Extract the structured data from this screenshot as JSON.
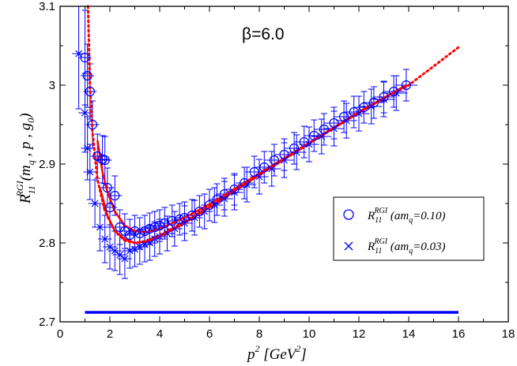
{
  "chart_data": {
    "type": "scatter",
    "annotation": "β=6.0",
    "xlabel": {
      "main": "p",
      "sup": "2",
      "units": " [GeV",
      "units_sup": "2",
      "close": "]"
    },
    "ylabel": {
      "main": "R",
      "sub": "11",
      "sup": "RGI",
      "args": "(m",
      "args_sub": "q",
      "args2": " , p , g",
      "args2_sub": "0",
      "close": ")"
    },
    "xlim": [
      0,
      18
    ],
    "ylim": [
      2.7,
      3.1
    ],
    "xticks": [
      "0",
      "2",
      "4",
      "6",
      "8",
      "10",
      "12",
      "14",
      "16",
      "18"
    ],
    "yticks": [
      "2.7",
      "2.8",
      "2.9",
      "3",
      "3.1"
    ],
    "grid": false,
    "legend_position": "right",
    "series": [
      {
        "marker": "circle",
        "color": "#0000ff",
        "legend": {
          "main": "R",
          "sub": "11",
          "sup": "RGI",
          "arg": " (am",
          "arg_sub": "q",
          "arg2": "=0.10)"
        },
        "points": [
          [
            1.0,
            3.035,
            0.06
          ],
          [
            1.1,
            3.012,
            0.04
          ],
          [
            1.2,
            2.992,
            0.035
          ],
          [
            1.3,
            2.95,
            0.03
          ],
          [
            1.5,
            2.91,
            0.028
          ],
          [
            1.7,
            2.906,
            0.03
          ],
          [
            1.8,
            2.905,
            0.03
          ],
          [
            1.9,
            2.87,
            0.025
          ],
          [
            2.0,
            2.845,
            0.025
          ],
          [
            2.2,
            2.86,
            0.025
          ],
          [
            2.4,
            2.82,
            0.022
          ],
          [
            2.6,
            2.815,
            0.022
          ],
          [
            2.8,
            2.81,
            0.02
          ],
          [
            3.0,
            2.815,
            0.02
          ],
          [
            3.2,
            2.812,
            0.02
          ],
          [
            3.4,
            2.815,
            0.02
          ],
          [
            3.6,
            2.818,
            0.02
          ],
          [
            3.8,
            2.82,
            0.02
          ],
          [
            4.0,
            2.822,
            0.02
          ],
          [
            4.2,
            2.825,
            0.02
          ],
          [
            4.5,
            2.828,
            0.02
          ],
          [
            4.8,
            2.83,
            0.02
          ],
          [
            5.0,
            2.832,
            0.02
          ],
          [
            5.3,
            2.835,
            0.02
          ],
          [
            5.6,
            2.84,
            0.02
          ],
          [
            6.0,
            2.848,
            0.02
          ],
          [
            6.3,
            2.855,
            0.02
          ],
          [
            6.6,
            2.862,
            0.02
          ],
          [
            7.0,
            2.868,
            0.02
          ],
          [
            7.4,
            2.876,
            0.02
          ],
          [
            7.8,
            2.89,
            0.02
          ],
          [
            8.2,
            2.896,
            0.02
          ],
          [
            8.6,
            2.905,
            0.02
          ],
          [
            9.0,
            2.912,
            0.02
          ],
          [
            9.4,
            2.92,
            0.02
          ],
          [
            9.8,
            2.928,
            0.02
          ],
          [
            10.2,
            2.936,
            0.02
          ],
          [
            10.6,
            2.944,
            0.02
          ],
          [
            11.0,
            2.952,
            0.02
          ],
          [
            11.4,
            2.96,
            0.02
          ],
          [
            11.8,
            2.966,
            0.02
          ],
          [
            12.2,
            2.972,
            0.02
          ],
          [
            12.6,
            2.978,
            0.02
          ],
          [
            13.0,
            2.985,
            0.02
          ],
          [
            13.4,
            2.992,
            0.02
          ],
          [
            13.9,
            3.0,
            0.02
          ]
        ]
      },
      {
        "marker": "x",
        "color": "#0000ff",
        "legend": {
          "main": "R",
          "sub": "11",
          "sup": "RGI",
          "arg": " (am",
          "arg_sub": "q",
          "arg2": "=0.03)"
        },
        "points": [
          [
            0.75,
            3.04,
            0.07
          ],
          [
            1.0,
            2.965,
            0.05
          ],
          [
            1.1,
            2.92,
            0.04
          ],
          [
            1.2,
            2.89,
            0.035
          ],
          [
            1.4,
            2.85,
            0.03
          ],
          [
            1.6,
            2.82,
            0.03
          ],
          [
            1.8,
            2.805,
            0.03
          ],
          [
            2.0,
            2.795,
            0.028
          ],
          [
            2.2,
            2.79,
            0.025
          ],
          [
            2.4,
            2.785,
            0.025
          ],
          [
            2.6,
            2.78,
            0.025
          ],
          [
            2.8,
            2.79,
            0.022
          ],
          [
            3.0,
            2.792,
            0.022
          ],
          [
            3.2,
            2.795,
            0.022
          ],
          [
            3.4,
            2.798,
            0.022
          ],
          [
            3.6,
            2.8,
            0.022
          ],
          [
            3.8,
            2.805,
            0.022
          ],
          [
            4.0,
            2.808,
            0.022
          ],
          [
            4.3,
            2.812,
            0.022
          ],
          [
            4.6,
            2.818,
            0.022
          ],
          [
            5.0,
            2.825,
            0.022
          ],
          [
            5.4,
            2.832,
            0.022
          ],
          [
            5.8,
            2.84,
            0.022
          ],
          [
            6.2,
            2.848,
            0.022
          ],
          [
            6.6,
            2.856,
            0.022
          ],
          [
            7.0,
            2.864,
            0.022
          ],
          [
            7.5,
            2.874,
            0.022
          ],
          [
            8.0,
            2.884,
            0.022
          ],
          [
            8.5,
            2.894,
            0.022
          ],
          [
            9.0,
            2.905,
            0.022
          ],
          [
            9.5,
            2.915,
            0.022
          ],
          [
            10.0,
            2.925,
            0.022
          ],
          [
            10.5,
            2.935,
            0.022
          ],
          [
            11.0,
            2.945,
            0.022
          ],
          [
            11.5,
            2.955,
            0.022
          ],
          [
            12.0,
            2.964,
            0.022
          ],
          [
            12.5,
            2.973,
            0.022
          ],
          [
            13.0,
            2.982,
            0.022
          ],
          [
            13.5,
            2.99,
            0.022
          ]
        ]
      }
    ],
    "fit_curves": [
      {
        "color": "#ff0000",
        "style": "dotted",
        "points": [
          [
            1.12,
            3.1
          ],
          [
            1.2,
            3.0
          ],
          [
            1.3,
            2.94
          ],
          [
            1.5,
            2.88
          ],
          [
            1.8,
            2.84
          ],
          [
            2.2,
            2.815
          ],
          [
            2.6,
            2.803
          ],
          [
            3.0,
            2.8
          ],
          [
            3.5,
            2.803
          ],
          [
            4.0,
            2.81
          ],
          [
            5.0,
            2.827
          ],
          [
            6.0,
            2.846
          ],
          [
            8.0,
            2.886
          ],
          [
            10.0,
            2.926
          ],
          [
            12.0,
            2.966
          ],
          [
            14.0,
            3.0
          ],
          [
            16.0,
            3.048
          ]
        ]
      },
      {
        "color": "#ff0000",
        "style": "solid",
        "points": [
          [
            1.5,
            2.93
          ],
          [
            1.7,
            2.89
          ],
          [
            1.9,
            2.865
          ],
          [
            2.2,
            2.84
          ],
          [
            2.6,
            2.822
          ],
          [
            3.0,
            2.815
          ],
          [
            3.5,
            2.814
          ],
          [
            4.0,
            2.818
          ],
          [
            5.0,
            2.832
          ],
          [
            6.0,
            2.849
          ],
          [
            8.0,
            2.888
          ],
          [
            10.0,
            2.927
          ],
          [
            12.0,
            2.966
          ],
          [
            13.9,
            3.0
          ]
        ]
      },
      {
        "color": "#ff0000",
        "style": "solid",
        "points": [
          [
            1.6,
            2.87
          ],
          [
            1.9,
            2.835
          ],
          [
            2.2,
            2.815
          ],
          [
            2.6,
            2.805
          ],
          [
            3.0,
            2.8
          ],
          [
            3.5,
            2.802
          ],
          [
            4.0,
            2.808
          ],
          [
            5.0,
            2.825
          ],
          [
            6.0,
            2.845
          ],
          [
            8.0,
            2.886
          ],
          [
            10.0,
            2.926
          ],
          [
            12.0,
            2.965
          ],
          [
            13.9,
            3.0
          ]
        ]
      }
    ],
    "reference_line": {
      "color": "#0000ff",
      "x": [
        1.0,
        16.0
      ],
      "y": 2.712
    }
  }
}
